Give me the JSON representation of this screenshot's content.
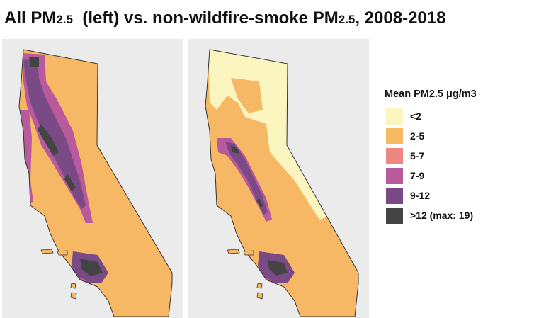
{
  "title": {
    "part1": "All PM",
    "sub1": "2.5",
    "part2": "  (left) vs. non-wildfire-smoke PM",
    "sub2": "2.5",
    "part3": ", 2008-2018"
  },
  "legend": {
    "title": "Mean PM2.5 μg/m3",
    "items": [
      {
        "label": "<2",
        "color": "#fbf5c0"
      },
      {
        "label": "2-5",
        "color": "#f6b865"
      },
      {
        "label": "5-7",
        "color": "#ec8680"
      },
      {
        "label": "7-9",
        "color": "#b85a9c"
      },
      {
        "label": "9-12",
        "color": "#7a4a86"
      },
      {
        "label": ">12 (max: 19)",
        "color": "#444444"
      }
    ]
  },
  "colors": {
    "panel_background": "#ebebeb",
    "state_outline": "#333333"
  }
}
